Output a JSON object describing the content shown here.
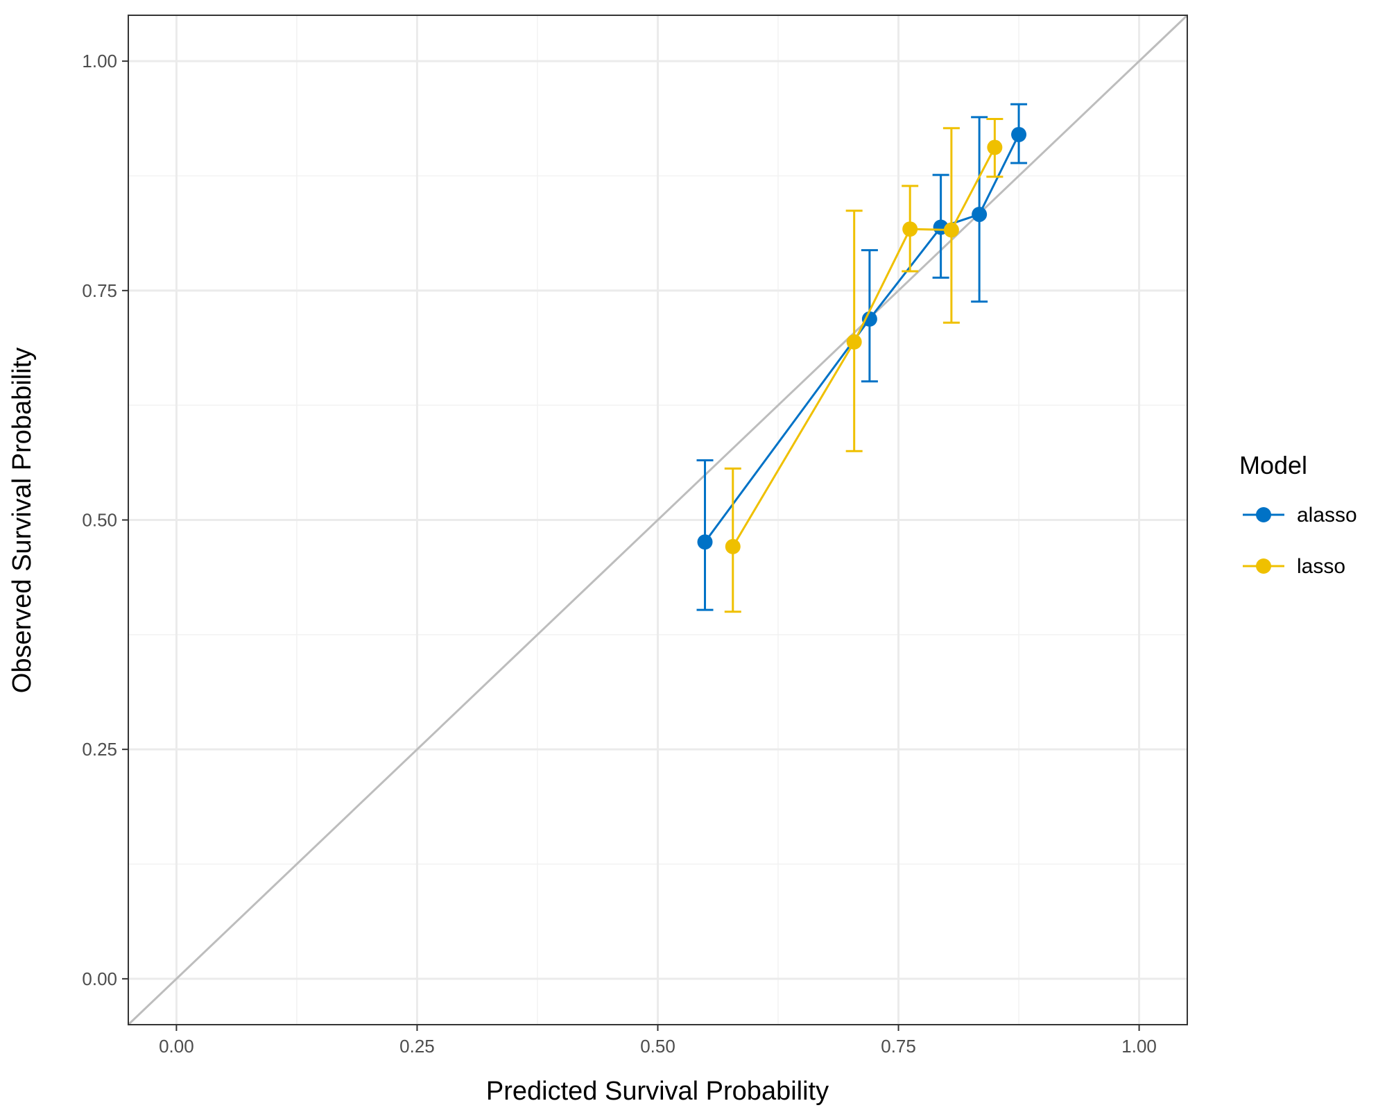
{
  "chart_data": {
    "type": "line",
    "title": "",
    "xlabel": "Predicted Survival Probability",
    "ylabel": "Observed Survival Probability",
    "xlim": [
      -0.05,
      1.05
    ],
    "ylim": [
      -0.05,
      1.05
    ],
    "x_ticks": [
      "0.00",
      "0.25",
      "0.50",
      "0.75",
      "1.00"
    ],
    "y_ticks": [
      "0.00",
      "0.25",
      "0.50",
      "0.75",
      "1.00"
    ],
    "grid": true,
    "reference_line": {
      "from": [
        -0.05,
        -0.05
      ],
      "to": [
        1.05,
        1.05
      ],
      "color": "#bdbdbd"
    },
    "legend": {
      "title": "Model",
      "position": "right"
    },
    "series": [
      {
        "name": "alasso",
        "color": "#0072C6",
        "points": [
          {
            "x": 0.549,
            "y": 0.476,
            "lower": 0.402,
            "upper": 0.565
          },
          {
            "x": 0.72,
            "y": 0.719,
            "lower": 0.651,
            "upper": 0.794
          },
          {
            "x": 0.794,
            "y": 0.819,
            "lower": 0.764,
            "upper": 0.876
          },
          {
            "x": 0.834,
            "y": 0.833,
            "lower": 0.738,
            "upper": 0.939
          },
          {
            "x": 0.875,
            "y": 0.92,
            "lower": 0.889,
            "upper": 0.953
          }
        ]
      },
      {
        "name": "lasso",
        "color": "#EFC000",
        "points": [
          {
            "x": 0.578,
            "y": 0.471,
            "lower": 0.4,
            "upper": 0.556
          },
          {
            "x": 0.704,
            "y": 0.694,
            "lower": 0.575,
            "upper": 0.837
          },
          {
            "x": 0.762,
            "y": 0.817,
            "lower": 0.771,
            "upper": 0.864
          },
          {
            "x": 0.805,
            "y": 0.816,
            "lower": 0.715,
            "upper": 0.927
          },
          {
            "x": 0.85,
            "y": 0.906,
            "lower": 0.874,
            "upper": 0.937
          }
        ]
      }
    ]
  }
}
